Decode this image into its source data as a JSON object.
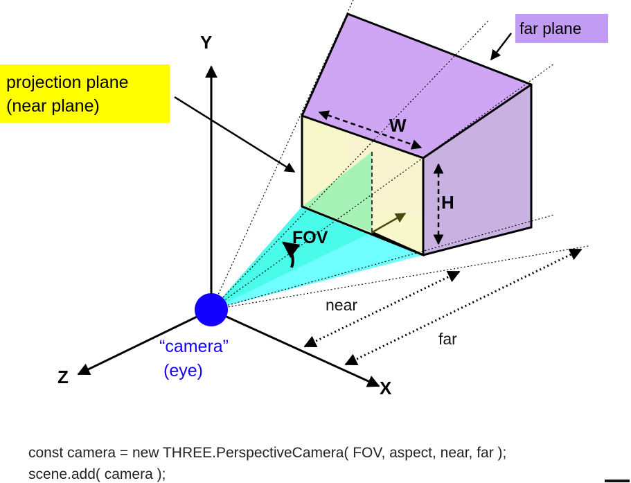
{
  "colors": {
    "note_yellow": "#ffff00",
    "note_purple": "#c29bf2",
    "camera_blue": "#1400ff",
    "camera_label": "#1400ff",
    "fov_cyan": "#33ffff",
    "fov_green": "#55ee99",
    "near_plane": "#fdfcc8",
    "far_plane_top": "#cfa6f4",
    "side_gray": "#d4d4d4"
  },
  "diagram": {
    "axes": {
      "y": "Y",
      "x": "X",
      "z": "Z"
    },
    "labels": {
      "projection_line1": "projection plane",
      "projection_line2": "(near plane)",
      "far_plane": "far plane",
      "width": "W",
      "height": "H",
      "fov": "FOV",
      "near": "near",
      "far": "far",
      "camera_line1": "“camera”",
      "camera_line2": "(eye)"
    }
  },
  "code": {
    "line1": "const camera = new THREE.PerspectiveCamera( FOV, aspect, near, far );",
    "line2": "scene.add( camera );"
  }
}
